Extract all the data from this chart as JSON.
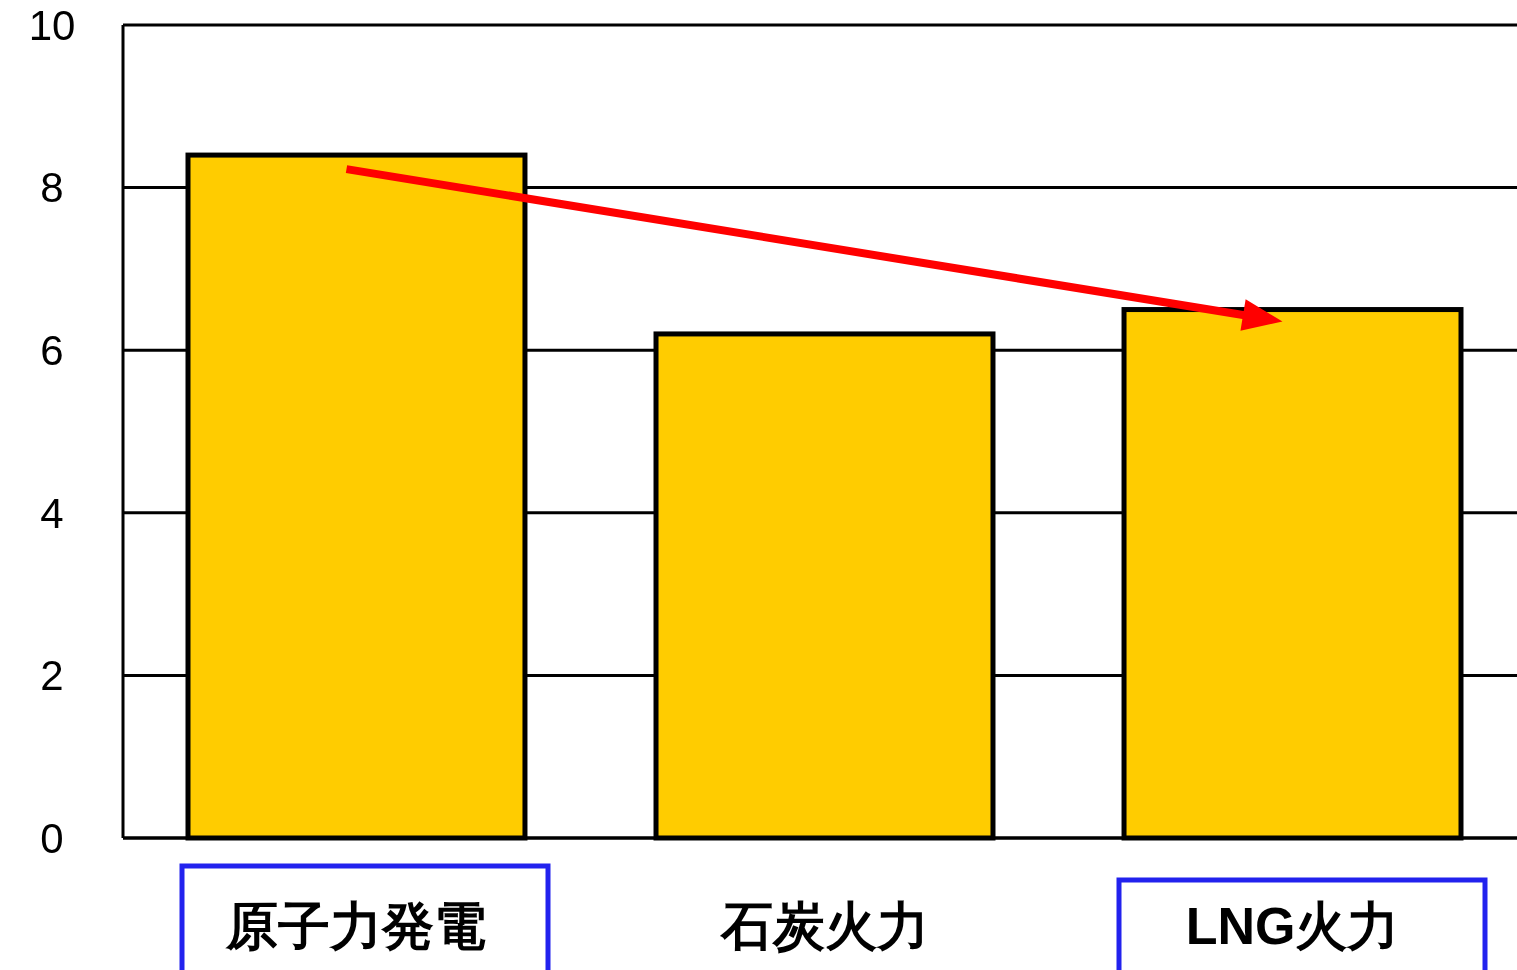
{
  "chart_data": {
    "type": "bar",
    "categories": [
      "原子力発電",
      "石炭火力",
      "LNG火力"
    ],
    "values": [
      8.4,
      6.2,
      6.5
    ],
    "color": "#ffcc00",
    "ylim": [
      0,
      10
    ],
    "yticks": [
      0,
      2,
      4,
      6,
      8,
      10
    ],
    "grid": "y"
  }
}
